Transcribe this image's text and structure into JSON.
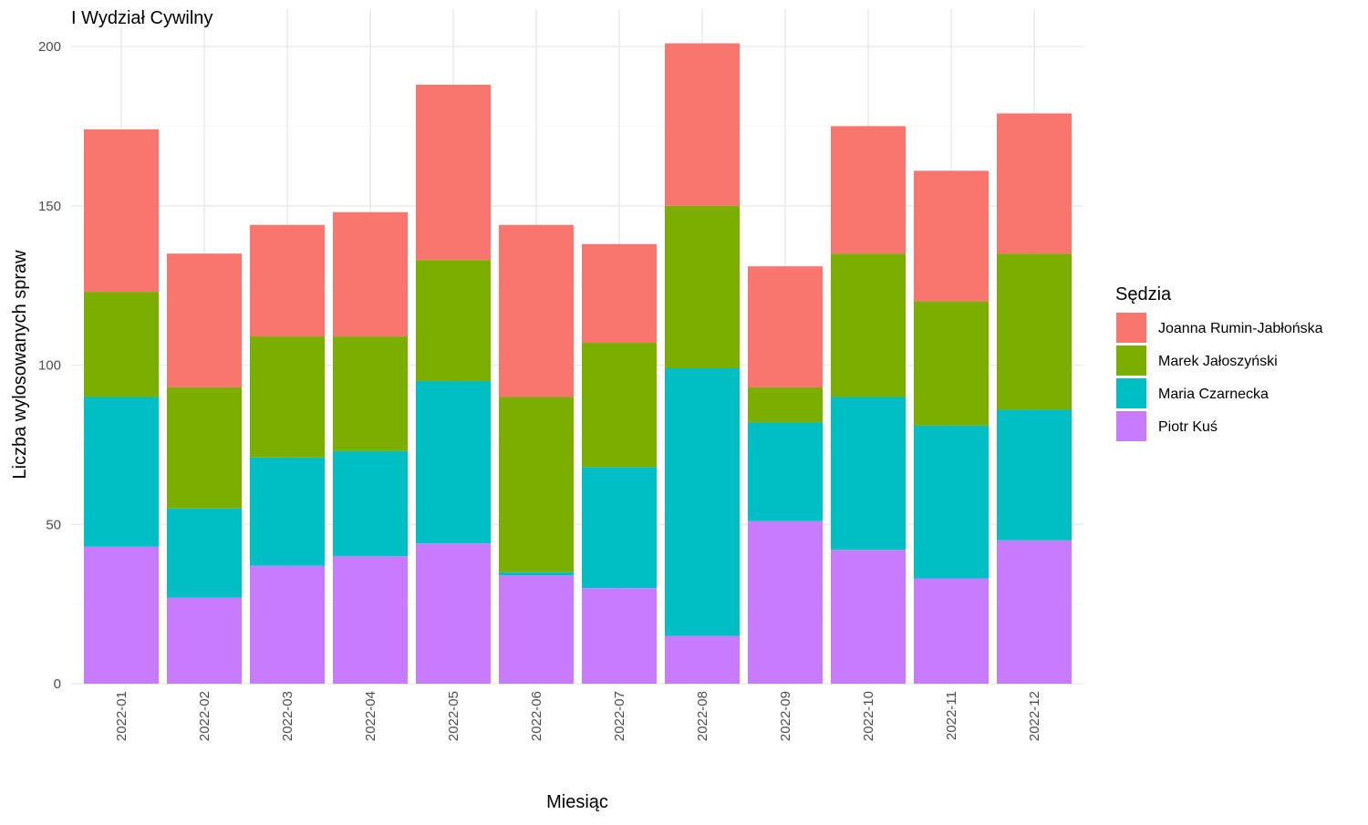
{
  "chart_data": {
    "type": "bar",
    "stacked": true,
    "title": "I Wydział Cywilny",
    "xlabel": "Miesiąc",
    "ylabel": "Liczba wylosowanych spraw",
    "ylim": [
      0,
      200
    ],
    "yticks": [
      0,
      50,
      100,
      150,
      200
    ],
    "grid": true,
    "legend_title": "Sędzia",
    "legend_position": "right",
    "categories": [
      "2022-01",
      "2022-02",
      "2022-03",
      "2022-04",
      "2022-05",
      "2022-06",
      "2022-07",
      "2022-08",
      "2022-09",
      "2022-10",
      "2022-11",
      "2022-12"
    ],
    "series": [
      {
        "name": "Piotr Kuś",
        "color": "#C77CFF",
        "values": [
          43,
          27,
          37,
          40,
          44,
          34,
          30,
          15,
          51,
          42,
          33,
          45
        ]
      },
      {
        "name": "Maria Czarnecka",
        "color": "#00BFC4",
        "values": [
          47,
          28,
          34,
          33,
          51,
          1,
          38,
          84,
          31,
          48,
          48,
          41
        ]
      },
      {
        "name": "Marek Jałoszyński",
        "color": "#7CAE00",
        "values": [
          33,
          38,
          38,
          36,
          38,
          55,
          39,
          51,
          11,
          45,
          39,
          49
        ]
      },
      {
        "name": "Joanna Rumin-Jabłońska",
        "color": "#F8766D",
        "values": [
          51,
          42,
          35,
          39,
          55,
          54,
          31,
          51,
          38,
          40,
          41,
          44
        ]
      }
    ],
    "legend_order": [
      "Joanna Rumin-Jabłońska",
      "Marek Jałoszyński",
      "Maria Czarnecka",
      "Piotr Kuś"
    ]
  }
}
